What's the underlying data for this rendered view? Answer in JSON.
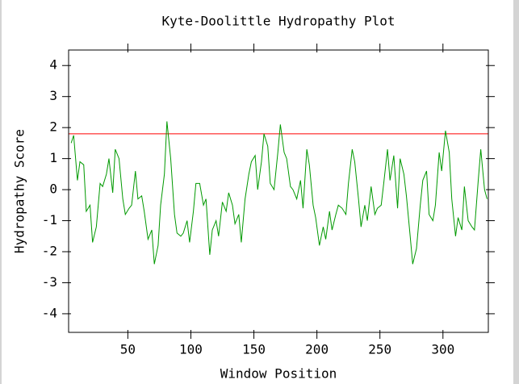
{
  "chart_data": {
    "type": "line",
    "title": "Kyte-Doolittle Hydropathy Plot",
    "x_label": "Window Position",
    "y_label": "Hydropathy Score",
    "xlim": [
      3,
      336
    ],
    "ylim": [
      -4.6,
      4.5
    ],
    "xticks": [
      50,
      100,
      150,
      200,
      250,
      300
    ],
    "yticks": [
      -4,
      -3,
      -2,
      -1,
      0,
      1,
      2,
      3,
      4
    ],
    "threshold": {
      "value": 1.8,
      "color": "#ff0000"
    },
    "series": [
      {
        "name": "Hydropathy",
        "color": "#009900",
        "x": [
          5,
          7,
          10,
          12,
          15,
          17,
          20,
          22,
          25,
          28,
          30,
          33,
          35,
          38,
          40,
          43,
          46,
          48,
          51,
          53,
          56,
          58,
          61,
          63,
          66,
          69,
          71,
          74,
          76,
          79,
          81,
          84,
          87,
          89,
          92,
          94,
          97,
          99,
          102,
          104,
          107,
          110,
          112,
          115,
          117,
          120,
          122,
          125,
          128,
          130,
          133,
          135,
          138,
          140,
          143,
          146,
          148,
          151,
          153,
          156,
          158,
          161,
          163,
          166,
          169,
          171,
          174,
          176,
          179,
          181,
          184,
          187,
          189,
          192,
          194,
          197,
          199,
          202,
          205,
          207,
          210,
          212,
          215,
          217,
          220,
          223,
          225,
          228,
          230,
          233,
          235,
          238,
          240,
          243,
          246,
          248,
          251,
          253,
          256,
          258,
          261,
          264,
          266,
          269,
          271,
          274,
          276,
          279,
          282,
          284,
          287,
          289,
          292,
          294,
          297,
          299,
          302,
          305,
          307,
          310,
          312,
          315,
          317,
          320,
          323,
          325,
          328,
          330,
          333,
          335
        ],
        "values": [
          1.5,
          1.75,
          0.3,
          0.9,
          0.8,
          -0.7,
          -0.5,
          -1.7,
          -1.2,
          0.2,
          0.1,
          0.5,
          1.0,
          -0.1,
          1.3,
          1.0,
          -0.3,
          -0.8,
          -0.6,
          -0.5,
          0.6,
          -0.3,
          -0.2,
          -0.7,
          -1.6,
          -1.3,
          -2.4,
          -1.8,
          -0.5,
          0.5,
          2.2,
          1.0,
          -0.8,
          -1.4,
          -1.5,
          -1.4,
          -1.0,
          -1.7,
          -0.7,
          0.2,
          0.2,
          -0.5,
          -0.3,
          -2.1,
          -1.3,
          -1.0,
          -1.5,
          -0.4,
          -0.7,
          -0.1,
          -0.5,
          -1.1,
          -0.8,
          -1.7,
          -0.3,
          0.5,
          0.9,
          1.1,
          0.0,
          0.9,
          1.8,
          1.4,
          0.2,
          0.0,
          1.2,
          2.1,
          1.2,
          1.0,
          0.1,
          0.0,
          -0.3,
          0.3,
          -0.6,
          1.3,
          0.8,
          -0.5,
          -0.9,
          -1.8,
          -1.2,
          -1.6,
          -0.7,
          -1.3,
          -0.8,
          -0.5,
          -0.6,
          -0.8,
          0.2,
          1.3,
          0.9,
          -0.3,
          -1.2,
          -0.5,
          -1.0,
          0.1,
          -0.8,
          -0.6,
          -0.5,
          0.2,
          1.3,
          0.3,
          1.1,
          -0.6,
          1.0,
          0.5,
          -0.2,
          -1.5,
          -2.4,
          -1.9,
          -0.5,
          0.3,
          0.6,
          -0.8,
          -1.0,
          -0.5,
          1.2,
          0.6,
          1.9,
          1.2,
          -0.3,
          -1.5,
          -0.9,
          -1.3,
          0.1,
          -1.0,
          -1.2,
          -1.3,
          0.3,
          1.3,
          0.0,
          -0.3
        ]
      }
    ]
  }
}
